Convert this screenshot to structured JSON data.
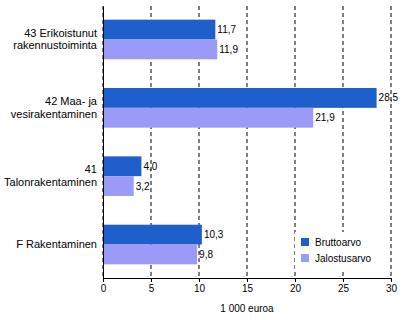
{
  "chart_data": {
    "type": "bar",
    "orientation": "horizontal",
    "categories": [
      "43 Erikoistunut rakennustoiminta",
      "42 Maa- ja vesirakentaminen",
      "41 Talonrakentaminen",
      "F Rakentaminen"
    ],
    "series": [
      {
        "name": "Bruttoarvo",
        "color": "#1f5fcc",
        "values": [
          11.7,
          28.5,
          4.0,
          10.3
        ],
        "value_labels": [
          "11,7",
          "28,5",
          "4,0",
          "10,3"
        ]
      },
      {
        "name": "Jalostusarvo",
        "color": "#9b9bf7",
        "values": [
          11.9,
          21.9,
          3.2,
          9.8
        ],
        "value_labels": [
          "11,9",
          "21,9",
          "3,2",
          "9,8"
        ]
      }
    ],
    "xlim": [
      0,
      30
    ],
    "xticks": [
      0,
      5,
      10,
      15,
      20,
      25,
      30
    ],
    "xlabel": "1 000 euroa",
    "grid": true,
    "legend": "lower right",
    "data_labels": true
  }
}
